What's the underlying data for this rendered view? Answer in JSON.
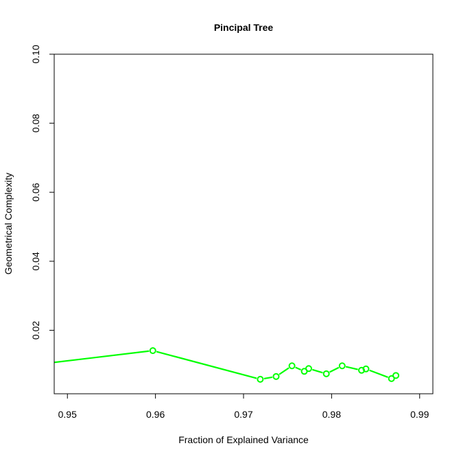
{
  "chart_data": {
    "type": "line",
    "title": "Pincipal Tree",
    "xlabel": "Fraction of Explained Variance",
    "ylabel": "Geometrical Complexity",
    "xlim": [
      0.9485,
      0.9915
    ],
    "ylim": [
      0.0016,
      0.1
    ],
    "xticks": [
      0.95,
      0.96,
      0.97,
      0.98,
      0.99
    ],
    "xtick_labels": [
      "0.95",
      "0.96",
      "0.97",
      "0.98",
      "0.99"
    ],
    "yticks": [
      0.02,
      0.04,
      0.06,
      0.08,
      0.1
    ],
    "ytick_labels": [
      "0.02",
      "0.04",
      "0.06",
      "0.08",
      "0.10"
    ],
    "grid": false,
    "legend": "none",
    "series": [
      {
        "color": "#00ff00",
        "marker": "open-circle",
        "leading_line_from": [
          0.9469,
          0.0102
        ],
        "x": [
          0.9597,
          0.9719,
          0.9737,
          0.9755,
          0.9769,
          0.9774,
          0.9794,
          0.9812,
          0.9834,
          0.9839,
          0.9868,
          0.9873
        ],
        "y": [
          0.0141,
          0.0058,
          0.0066,
          0.0097,
          0.0081,
          0.0089,
          0.0074,
          0.0097,
          0.0084,
          0.0088,
          0.006,
          0.0069
        ]
      }
    ]
  }
}
